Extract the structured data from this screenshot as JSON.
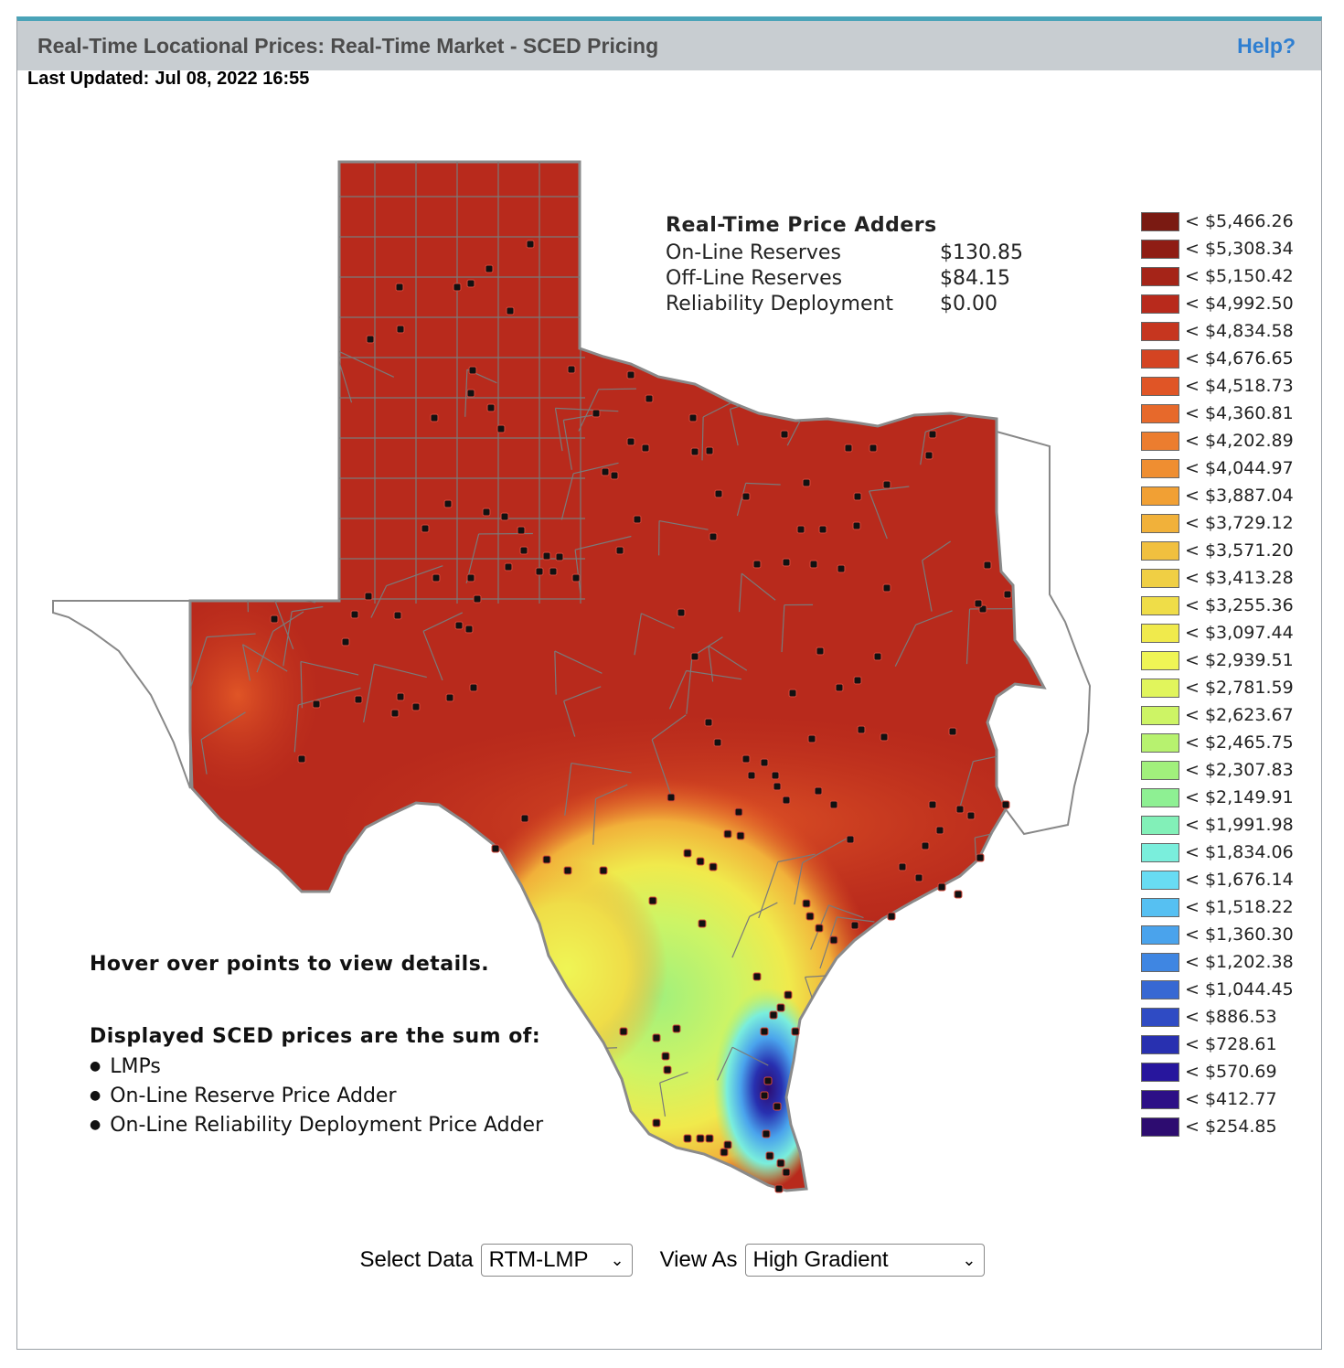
{
  "header": {
    "title": "Real-Time Locational Prices: Real-Time Market - SCED Pricing",
    "help": "Help?"
  },
  "updated": {
    "label": "Last Updated:",
    "value": "Jul 08, 2022 16:55"
  },
  "adders": {
    "title": "Real-Time Price Adders",
    "rows": [
      {
        "label": "On-Line Reserves",
        "value": "$130.85"
      },
      {
        "label": "Off-Line Reserves",
        "value": "$84.15"
      },
      {
        "label": "Reliability Deployment",
        "value": "$0.00"
      }
    ]
  },
  "legend": [
    {
      "label": "< $5,466.26",
      "color": "#7a1a12"
    },
    {
      "label": "< $5,308.34",
      "color": "#8f1d14"
    },
    {
      "label": "< $5,150.42",
      "color": "#a52418"
    },
    {
      "label": "< $4,992.50",
      "color": "#b82a1c"
    },
    {
      "label": "< $4,834.58",
      "color": "#c6361f"
    },
    {
      "label": "< $4,676.65",
      "color": "#d44422"
    },
    {
      "label": "< $4,518.73",
      "color": "#e05526"
    },
    {
      "label": "< $4,360.81",
      "color": "#e7692b"
    },
    {
      "label": "< $4,202.89",
      "color": "#ec7d2f"
    },
    {
      "label": "< $4,044.97",
      "color": "#ef8e31"
    },
    {
      "label": "< $3,887.04",
      "color": "#f1a034"
    },
    {
      "label": "< $3,729.12",
      "color": "#f1b13a"
    },
    {
      "label": "< $3,571.20",
      "color": "#f1c03f"
    },
    {
      "label": "< $3,413.28",
      "color": "#f0cf44"
    },
    {
      "label": "< $3,255.36",
      "color": "#efdd48"
    },
    {
      "label": "< $3,097.44",
      "color": "#f0ea4c"
    },
    {
      "label": "< $2,939.51",
      "color": "#eff555"
    },
    {
      "label": "< $2,781.59",
      "color": "#e1f55c"
    },
    {
      "label": "< $2,623.67",
      "color": "#cdf465"
    },
    {
      "label": "< $2,465.75",
      "color": "#b7f26f"
    },
    {
      "label": "< $2,307.83",
      "color": "#a1f07c"
    },
    {
      "label": "< $2,149.91",
      "color": "#8ef093"
    },
    {
      "label": "< $1,991.98",
      "color": "#82f0b8"
    },
    {
      "label": "< $1,834.06",
      "color": "#7aeedc"
    },
    {
      "label": "< $1,676.14",
      "color": "#68dcf3"
    },
    {
      "label": "< $1,518.22",
      "color": "#56c0f2"
    },
    {
      "label": "< $1,360.30",
      "color": "#4aa3ec"
    },
    {
      "label": "< $1,202.38",
      "color": "#3f86e2"
    },
    {
      "label": "< $1,044.45",
      "color": "#3768d3"
    },
    {
      "label": "< $886.53",
      "color": "#2f4bc4"
    },
    {
      "label": "< $728.61",
      "color": "#2830b0"
    },
    {
      "label": "< $570.69",
      "color": "#27169d"
    },
    {
      "label": "< $412.77",
      "color": "#2c0f86"
    },
    {
      "label": "< $254.85",
      "color": "#2d0c70"
    }
  ],
  "notes": {
    "hover": "Hover over points to view details.",
    "sum_title": "Displayed SCED prices are the sum of:",
    "items": [
      "LMPs",
      "On-Line Reserve Price Adder",
      "On-Line Reliability Deployment Price Adder"
    ]
  },
  "controls": {
    "select_data_label": "Select Data",
    "select_data_value": "RTM-LMP",
    "view_as_label": "View As",
    "view_as_value": "High Gradient"
  }
}
